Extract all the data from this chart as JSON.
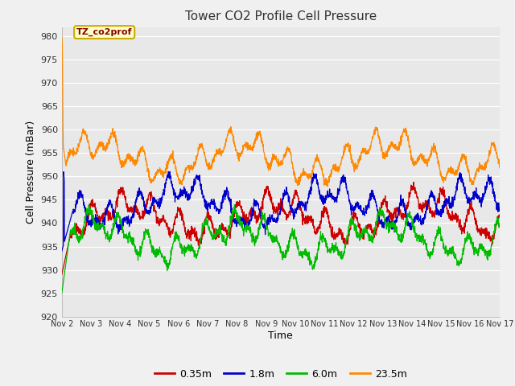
{
  "title": "Tower CO2 Profile Cell Pressure",
  "xlabel": "Time",
  "ylabel": "Cell Pressure (mBar)",
  "ylim": [
    920,
    982
  ],
  "yticks": [
    920,
    925,
    930,
    935,
    940,
    945,
    950,
    955,
    960,
    965,
    970,
    975,
    980
  ],
  "fig_bg_color": "#f0f0f0",
  "plot_bg_color": "#e8e8e8",
  "series": [
    {
      "label": "0.35m",
      "color": "#cc0000"
    },
    {
      "label": "1.8m",
      "color": "#0000cc"
    },
    {
      "label": "6.0m",
      "color": "#00bb00"
    },
    {
      "label": "23.5m",
      "color": "#ff8800"
    }
  ],
  "annotation_text": "TZ_co2prof",
  "annotation_text_color": "#880000",
  "annotation_border_color": "#ccaa00",
  "annotation_bg": "#ffffcc",
  "n_days": 15,
  "seed": 42
}
